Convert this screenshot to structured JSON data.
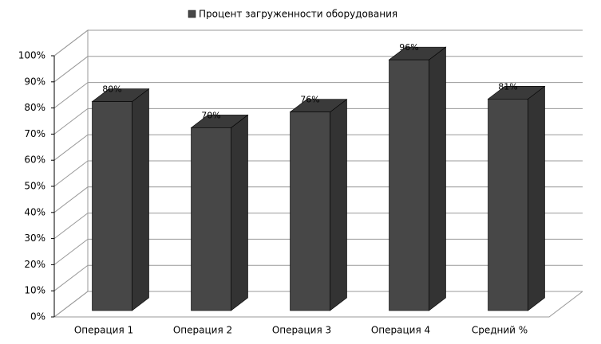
{
  "chart_data": {
    "type": "bar3d",
    "categories": [
      "Операция 1",
      "Операция 2",
      "Операция 3",
      "Операция 4",
      "Средний %"
    ],
    "series": [
      {
        "name": "Процент загруженности оборудования",
        "color": "#474747",
        "values": [
          80,
          70,
          76,
          96,
          81
        ],
        "value_labels": [
          "80%",
          "70%",
          "76%",
          "96%",
          "81%"
        ]
      }
    ],
    "ylim": [
      0,
      100
    ],
    "yticks": [
      {
        "value": 0,
        "label": "0%"
      },
      {
        "value": 10,
        "label": "10%"
      },
      {
        "value": 20,
        "label": "20%"
      },
      {
        "value": 30,
        "label": "30%"
      },
      {
        "value": 40,
        "label": "40%"
      },
      {
        "value": 50,
        "label": "50%"
      },
      {
        "value": 60,
        "label": "60%"
      },
      {
        "value": 70,
        "label": "70%"
      },
      {
        "value": 80,
        "label": "80%"
      },
      {
        "value": 90,
        "label": "90%"
      },
      {
        "value": 100,
        "label": "100%"
      }
    ],
    "grid": true,
    "legend": "top"
  }
}
